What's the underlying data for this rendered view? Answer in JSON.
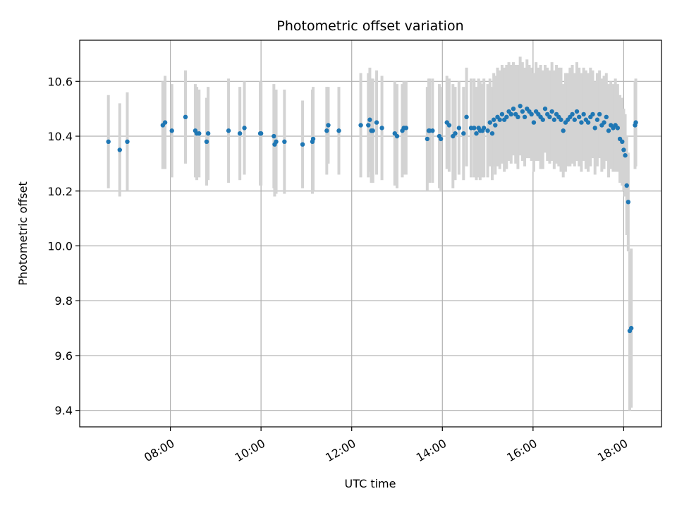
{
  "chart_data": {
    "type": "scatter",
    "title": "Photometric offset variation",
    "xlabel": "UTC time",
    "ylabel": "Photometric offset",
    "x_tick_labels": [
      "08:00",
      "10:00",
      "12:00",
      "14:00",
      "16:00",
      "18:00"
    ],
    "y_tick_labels": [
      "9.4",
      "9.6",
      "9.8",
      "10.0",
      "10.2",
      "10.4",
      "10.6"
    ],
    "xlim": [
      "06:00",
      "18:50"
    ],
    "ylim": [
      9.34,
      10.75
    ],
    "grid": true,
    "colors": {
      "points": "#1f77b4",
      "errorbars": "#d3d3d3",
      "grid": "#b0b0b0"
    },
    "series": [
      {
        "x": [
          "06:38",
          "06:53",
          "07:03",
          "07:50",
          "07:53",
          "08:02",
          "08:20",
          "08:33",
          "08:35",
          "08:38",
          "08:48",
          "08:50",
          "09:17",
          "09:32",
          "09:38",
          "09:59",
          "10:00",
          "10:17",
          "10:18",
          "10:20",
          "10:31",
          "10:55",
          "11:08",
          "11:09",
          "11:27",
          "11:29",
          "11:43",
          "12:12",
          "12:22",
          "12:24",
          "12:26",
          "12:28",
          "12:33",
          "12:40",
          "12:57",
          "13:00",
          "13:07",
          "13:09",
          "13:12",
          "13:40",
          "13:42",
          "13:43",
          "13:47",
          "13:56",
          "13:58",
          "14:06",
          "14:09",
          "14:14",
          "14:17",
          "14:22",
          "14:28",
          "14:32",
          "14:38",
          "14:42",
          "14:45",
          "14:48",
          "14:50",
          "14:53",
          "14:55",
          "15:00",
          "15:03",
          "15:06",
          "15:08",
          "15:10",
          "15:13",
          "15:16",
          "15:19",
          "15:22",
          "15:25",
          "15:28",
          "15:31",
          "15:34",
          "15:37",
          "15:40",
          "15:43",
          "15:46",
          "15:49",
          "15:52",
          "15:55",
          "15:58",
          "16:01",
          "16:04",
          "16:07",
          "16:10",
          "16:13",
          "16:16",
          "16:19",
          "16:22",
          "16:25",
          "16:28",
          "16:31",
          "16:34",
          "16:37",
          "16:40",
          "16:43",
          "16:46",
          "16:49",
          "16:52",
          "16:55",
          "16:58",
          "17:01",
          "17:04",
          "17:07",
          "17:10",
          "17:13",
          "17:16",
          "17:19",
          "17:22",
          "17:25",
          "17:28",
          "17:31",
          "17:34",
          "17:37",
          "17:40",
          "17:43",
          "17:46",
          "17:49",
          "17:52",
          "17:55",
          "17:58",
          "18:00",
          "18:02",
          "18:04",
          "18:06",
          "18:08",
          "18:10",
          "18:15",
          "18:16"
        ],
        "y": [
          10.38,
          10.35,
          10.38,
          10.44,
          10.45,
          10.42,
          10.47,
          10.42,
          10.41,
          10.41,
          10.38,
          10.41,
          10.42,
          10.41,
          10.43,
          10.41,
          10.41,
          10.4,
          10.37,
          10.38,
          10.38,
          10.37,
          10.38,
          10.39,
          10.42,
          10.44,
          10.42,
          10.44,
          10.44,
          10.46,
          10.42,
          10.42,
          10.45,
          10.43,
          10.41,
          10.4,
          10.42,
          10.43,
          10.43,
          10.39,
          10.42,
          10.42,
          10.42,
          10.4,
          10.39,
          10.45,
          10.44,
          10.4,
          10.41,
          10.43,
          10.41,
          10.47,
          10.43,
          10.43,
          10.41,
          10.43,
          10.42,
          10.42,
          10.43,
          10.42,
          10.45,
          10.41,
          10.46,
          10.44,
          10.47,
          10.46,
          10.48,
          10.46,
          10.47,
          10.49,
          10.48,
          10.5,
          10.48,
          10.47,
          10.51,
          10.49,
          10.47,
          10.5,
          10.49,
          10.48,
          10.45,
          10.49,
          10.48,
          10.47,
          10.46,
          10.5,
          10.48,
          10.47,
          10.49,
          10.46,
          10.48,
          10.47,
          10.46,
          10.42,
          10.45,
          10.46,
          10.47,
          10.48,
          10.46,
          10.49,
          10.47,
          10.45,
          10.48,
          10.46,
          10.45,
          10.47,
          10.48,
          10.43,
          10.46,
          10.48,
          10.44,
          10.45,
          10.47,
          10.42,
          10.44,
          10.43,
          10.44,
          10.43,
          10.39,
          10.38,
          10.35,
          10.33,
          10.22,
          10.16,
          9.69,
          9.7,
          10.44,
          10.45
        ],
        "err": [
          0.17,
          0.17,
          0.18,
          0.16,
          0.17,
          0.17,
          0.17,
          0.17,
          0.17,
          0.16,
          0.16,
          0.17,
          0.19,
          0.17,
          0.17,
          0.19,
          0.19,
          0.19,
          0.19,
          0.19,
          0.19,
          0.16,
          0.19,
          0.19,
          0.16,
          0.14,
          0.16,
          0.19,
          0.19,
          0.19,
          0.19,
          0.19,
          0.19,
          0.19,
          0.19,
          0.19,
          0.17,
          0.17,
          0.17,
          0.19,
          0.19,
          0.19,
          0.19,
          0.19,
          0.19,
          0.17,
          0.17,
          0.19,
          0.17,
          0.17,
          0.17,
          0.18,
          0.18,
          0.18,
          0.17,
          0.18,
          0.18,
          0.17,
          0.18,
          0.17,
          0.16,
          0.17,
          0.17,
          0.18,
          0.18,
          0.18,
          0.18,
          0.19,
          0.19,
          0.18,
          0.18,
          0.17,
          0.18,
          0.19,
          0.18,
          0.18,
          0.18,
          0.18,
          0.17,
          0.17,
          0.18,
          0.18,
          0.17,
          0.19,
          0.18,
          0.16,
          0.17,
          0.17,
          0.18,
          0.18,
          0.18,
          0.18,
          0.19,
          0.17,
          0.18,
          0.17,
          0.18,
          0.18,
          0.17,
          0.18,
          0.18,
          0.18,
          0.17,
          0.18,
          0.18,
          0.18,
          0.16,
          0.17,
          0.17,
          0.16,
          0.17,
          0.17,
          0.16,
          0.17,
          0.16,
          0.16,
          0.17,
          0.16,
          0.16,
          0.16,
          0.15,
          0.15,
          0.18,
          0.18,
          0.29,
          0.29,
          0.16,
          0.16
        ]
      }
    ]
  }
}
